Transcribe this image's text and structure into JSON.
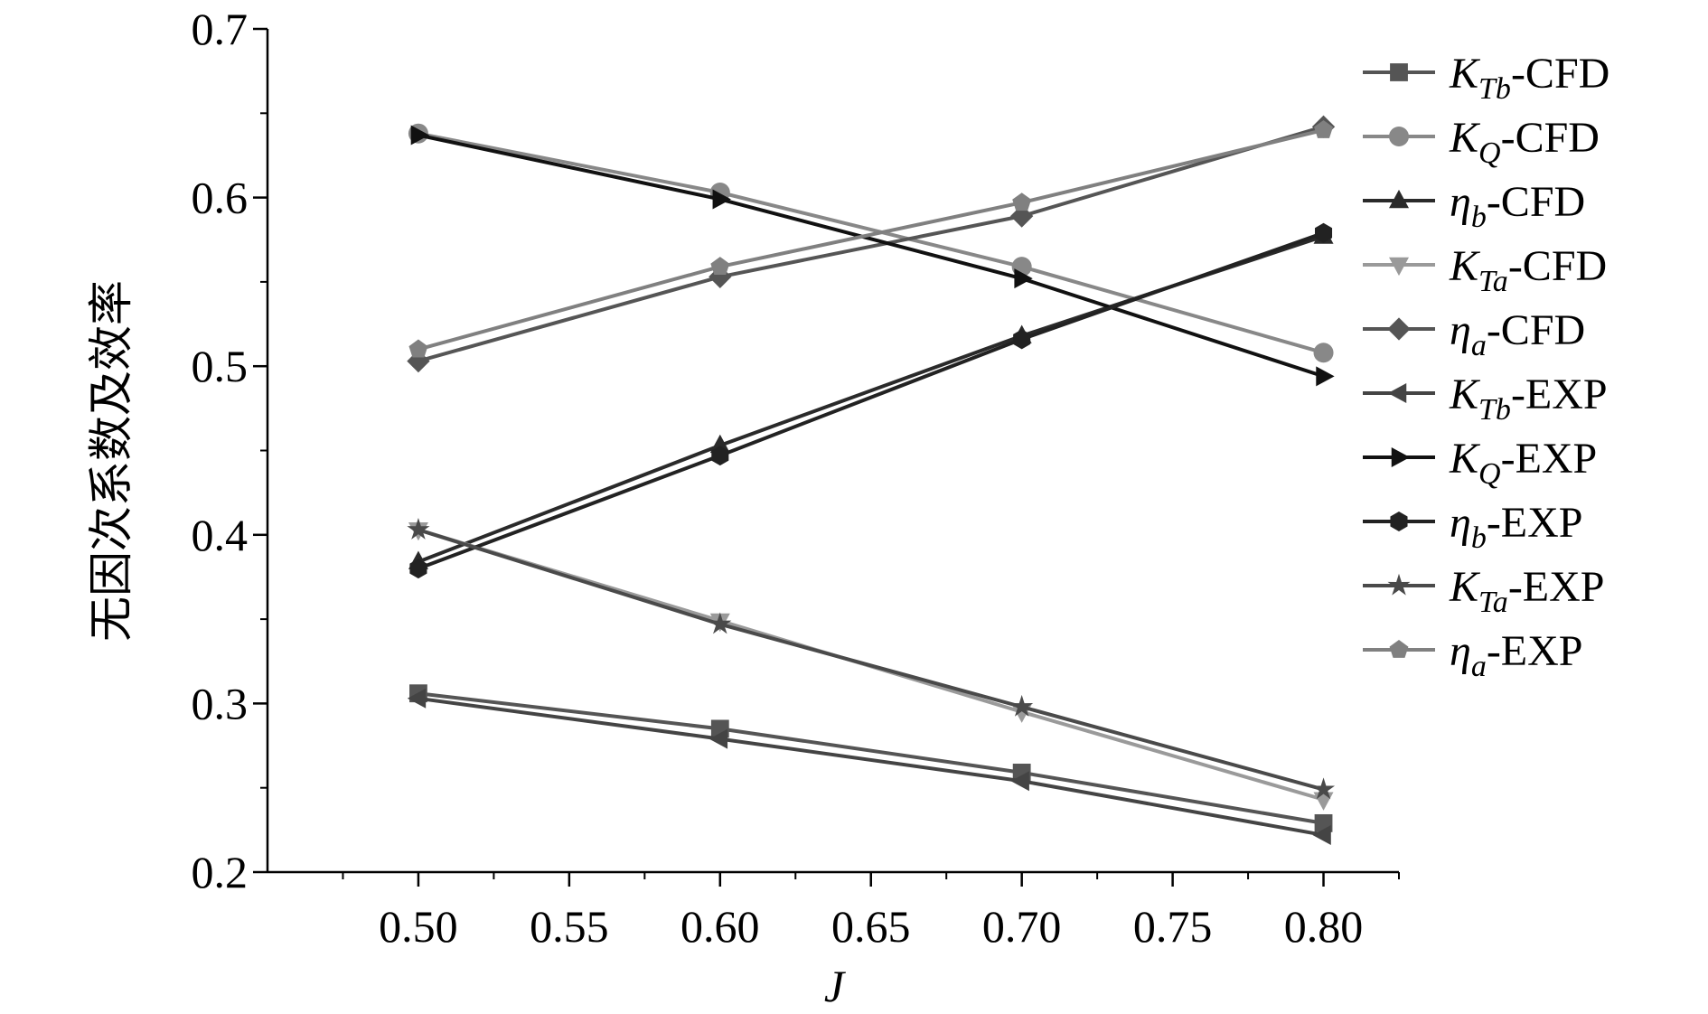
{
  "chart_data": {
    "type": "line",
    "title": "",
    "xlabel": "J",
    "ylabel": "无因次系数及效率",
    "xlim": [
      0.45,
      0.825
    ],
    "ylim": [
      0.2,
      0.7
    ],
    "x_ticks": [
      "0.50",
      "0.55",
      "0.60",
      "0.65",
      "0.70",
      "0.75",
      "0.80"
    ],
    "y_ticks": [
      "0.2",
      "0.3",
      "0.4",
      "0.5",
      "0.6",
      "0.7"
    ],
    "x": [
      0.5,
      0.6,
      0.7,
      0.8
    ],
    "legend_position": "right",
    "grid": false,
    "series": [
      {
        "name": "K_Tb-CFD",
        "sym": "K",
        "sub": "Tb",
        "suffix": "-CFD",
        "marker": "square",
        "color": "#555555",
        "values": [
          0.306,
          0.285,
          0.259,
          0.229
        ]
      },
      {
        "name": "K_Q-CFD",
        "sym": "K",
        "sub": "Q",
        "suffix": "-CFD",
        "marker": "circle",
        "color": "#888888",
        "values": [
          0.638,
          0.603,
          0.559,
          0.508
        ]
      },
      {
        "name": "η_b-CFD",
        "sym": "η",
        "sub": "b",
        "suffix": "-CFD",
        "marker": "triangle-up",
        "color": "#2a2a2a",
        "values": [
          0.384,
          0.453,
          0.518,
          0.577
        ]
      },
      {
        "name": "K_Ta-CFD",
        "sym": "K",
        "sub": "Ta",
        "suffix": "-CFD",
        "marker": "triangle-down",
        "color": "#9a9a9a",
        "values": [
          0.403,
          0.349,
          0.295,
          0.243
        ]
      },
      {
        "name": "η_a-CFD",
        "sym": "η",
        "sub": "a",
        "suffix": "-CFD",
        "marker": "diamond",
        "color": "#555555",
        "values": [
          0.503,
          0.553,
          0.589,
          0.642
        ]
      },
      {
        "name": "K_Tb-EXP",
        "sym": "K",
        "sub": "Tb",
        "suffix": "-EXP",
        "marker": "triangle-left",
        "color": "#444444",
        "values": [
          0.303,
          0.279,
          0.254,
          0.222
        ]
      },
      {
        "name": "K_Q-EXP",
        "sym": "K",
        "sub": "Q",
        "suffix": "-EXP",
        "marker": "triangle-right",
        "color": "#111111",
        "values": [
          0.637,
          0.599,
          0.552,
          0.494
        ]
      },
      {
        "name": "η_b-EXP",
        "sym": "η",
        "sub": "b",
        "suffix": "-EXP",
        "marker": "hexagon",
        "color": "#222222",
        "values": [
          0.38,
          0.447,
          0.516,
          0.579
        ]
      },
      {
        "name": "K_Ta-EXP",
        "sym": "K",
        "sub": "Ta",
        "suffix": "-EXP",
        "marker": "star",
        "color": "#4a4a4a",
        "values": [
          0.403,
          0.347,
          0.298,
          0.249
        ]
      },
      {
        "name": "η_a-EXP",
        "sym": "η",
        "sub": "a",
        "suffix": "-EXP",
        "marker": "pentagon",
        "color": "#808080",
        "values": [
          0.51,
          0.559,
          0.597,
          0.64
        ]
      }
    ]
  }
}
